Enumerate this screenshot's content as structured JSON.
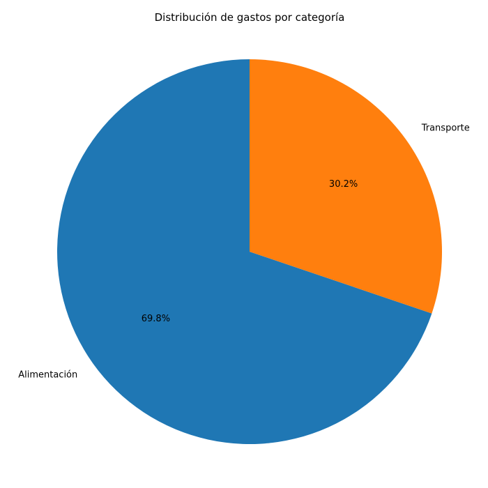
{
  "chart_data": {
    "type": "pie",
    "title": "Distribución de gastos por categoría",
    "start_angle_deg": 90,
    "direction": "counterclockwise",
    "slices": [
      {
        "label": "Alimentación",
        "value": 69.8,
        "pct_label": "69.8%",
        "color": "#1f77b4"
      },
      {
        "label": "Transporte",
        "value": 30.2,
        "pct_label": "30.2%",
        "color": "#ff7f0e"
      }
    ]
  }
}
